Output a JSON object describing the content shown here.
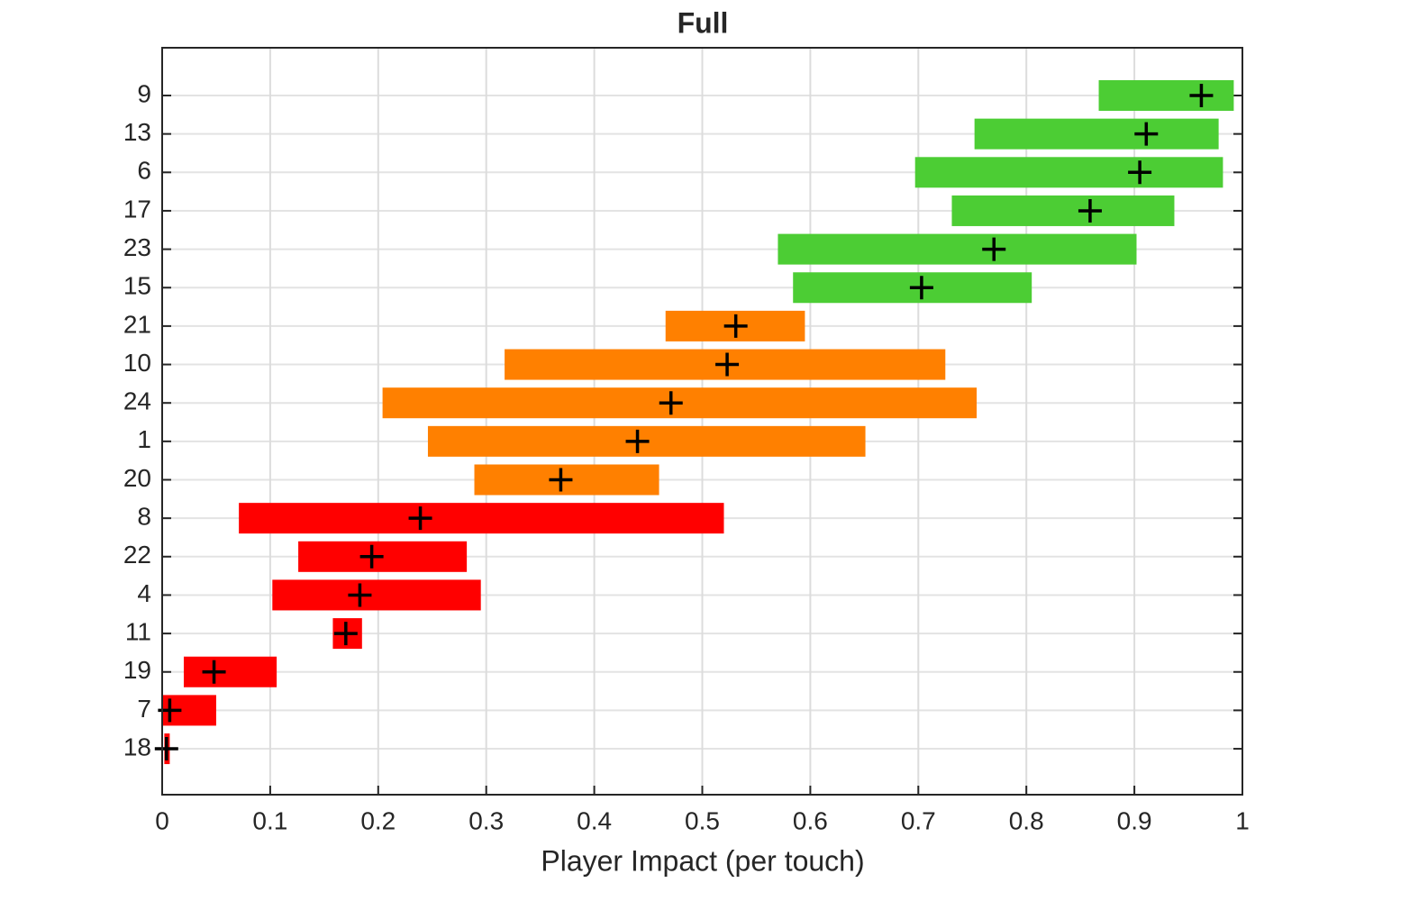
{
  "chart_data": {
    "type": "range-bar",
    "title": "Full",
    "x_label": "Player Impact (per touch)",
    "categories": [
      "9",
      "13",
      "6",
      "17",
      "23",
      "15",
      "21",
      "10",
      "24",
      "1",
      "20",
      "8",
      "22",
      "4",
      "11",
      "19",
      "7",
      "18"
    ],
    "lows": [
      0.867,
      0.752,
      0.697,
      0.731,
      0.57,
      0.584,
      0.466,
      0.317,
      0.204,
      0.246,
      0.289,
      0.071,
      0.126,
      0.102,
      0.158,
      0.02,
      0.0,
      0.002
    ],
    "highs": [
      0.992,
      0.978,
      0.982,
      0.937,
      0.902,
      0.805,
      0.595,
      0.725,
      0.754,
      0.651,
      0.46,
      0.52,
      0.282,
      0.295,
      0.185,
      0.106,
      0.05,
      0.007
    ],
    "markers": [
      0.962,
      0.911,
      0.905,
      0.859,
      0.77,
      0.703,
      0.531,
      0.523,
      0.471,
      0.44,
      0.369,
      0.239,
      0.194,
      0.183,
      0.17,
      0.048,
      0.007,
      0.004
    ],
    "colors": [
      "#4ccd34",
      "#4ccd34",
      "#4ccd34",
      "#4ccd34",
      "#4ccd34",
      "#4ccd34",
      "#ff8000",
      "#ff8000",
      "#ff8000",
      "#ff8000",
      "#ff8000",
      "#ff0000",
      "#ff0000",
      "#ff0000",
      "#ff0000",
      "#ff0000",
      "#ff0000",
      "#ff0000"
    ],
    "xlim": [
      0,
      1
    ],
    "xticks": [
      0,
      0.1,
      0.2,
      0.3,
      0.4,
      0.5,
      0.6,
      0.7,
      0.8,
      0.9,
      1
    ],
    "grid": true
  }
}
